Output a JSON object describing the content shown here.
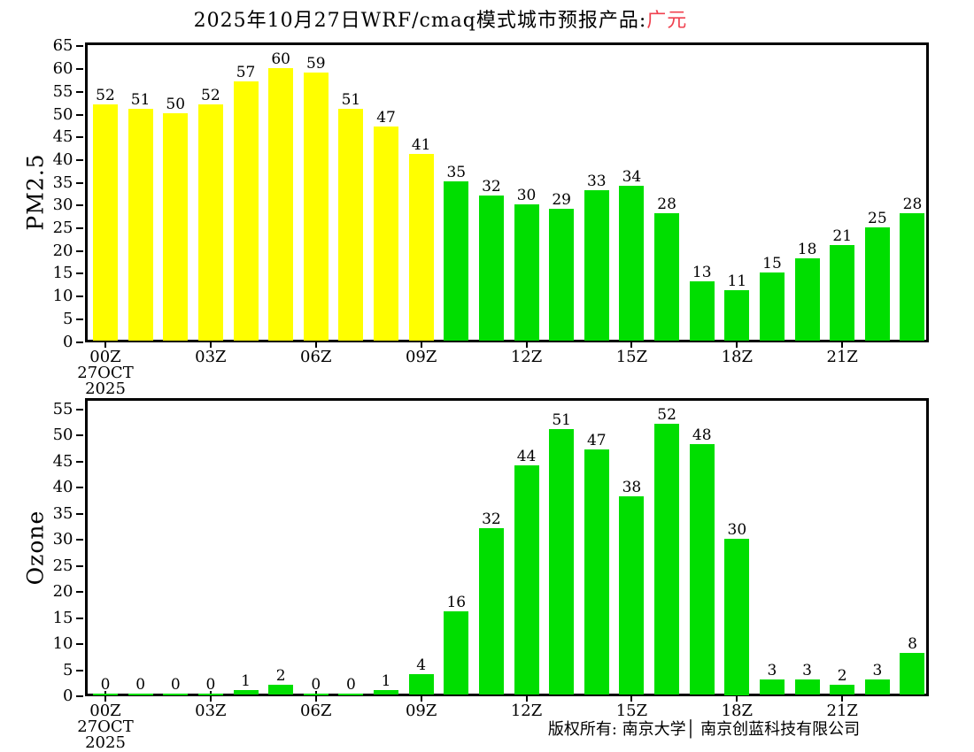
{
  "title": {
    "text": "2025年10月27日WRF/cmaq模式城市预报产品:",
    "highlight": "广元",
    "highlight_color": "#f0414f"
  },
  "footer": {
    "text": "版权所有: 南京大学│ 南京创蓝科技有限公司"
  },
  "colors": {
    "bar_yellow": "#ffff00",
    "bar_green": "#00de00",
    "axis": "#000000",
    "background": "#ffffff"
  },
  "x_axis": {
    "xtick_labels": [
      "00Z",
      "03Z",
      "06Z",
      "09Z",
      "12Z",
      "15Z",
      "18Z",
      "21Z"
    ],
    "xtick_every_hours": 3,
    "start_date_lines": [
      "27OCT",
      "2025"
    ]
  },
  "chart_data": [
    {
      "type": "bar",
      "name": "pm25",
      "ylabel": "PM2.5",
      "ylim": [
        0,
        65
      ],
      "ytick_step": 5,
      "grid": false,
      "legend": null,
      "hours": 24,
      "xtick_labels": [
        "00Z",
        "03Z",
        "06Z",
        "09Z",
        "12Z",
        "15Z",
        "18Z",
        "21Z"
      ],
      "start_date_lines": [
        "27OCT",
        "2025"
      ],
      "values": [
        52,
        51,
        50,
        52,
        57,
        60,
        59,
        51,
        47,
        41,
        35,
        32,
        30,
        29,
        33,
        34,
        28,
        13,
        11,
        15,
        18,
        21,
        25,
        28
      ],
      "bar_colors": [
        "#ffff00",
        "#ffff00",
        "#ffff00",
        "#ffff00",
        "#ffff00",
        "#ffff00",
        "#ffff00",
        "#ffff00",
        "#ffff00",
        "#ffff00",
        "#00de00",
        "#00de00",
        "#00de00",
        "#00de00",
        "#00de00",
        "#00de00",
        "#00de00",
        "#00de00",
        "#00de00",
        "#00de00",
        "#00de00",
        "#00de00",
        "#00de00",
        "#00de00"
      ]
    },
    {
      "type": "bar",
      "name": "ozone",
      "ylabel": "Ozone",
      "ylim": [
        0,
        55
      ],
      "ytick_step": 5,
      "grid": false,
      "legend": null,
      "hours": 24,
      "xtick_labels": [
        "00Z",
        "03Z",
        "06Z",
        "09Z",
        "12Z",
        "15Z",
        "18Z",
        "21Z"
      ],
      "start_date_lines": [
        "27OCT",
        "2025"
      ],
      "values": [
        0,
        0,
        0,
        0,
        1,
        2,
        0,
        0,
        1,
        4,
        16,
        32,
        44,
        51,
        47,
        38,
        52,
        48,
        30,
        3,
        3,
        2,
        3,
        8
      ],
      "bar_colors": [
        "#00de00",
        "#00de00",
        "#00de00",
        "#00de00",
        "#00de00",
        "#00de00",
        "#00de00",
        "#00de00",
        "#00de00",
        "#00de00",
        "#00de00",
        "#00de00",
        "#00de00",
        "#00de00",
        "#00de00",
        "#00de00",
        "#00de00",
        "#00de00",
        "#00de00",
        "#00de00",
        "#00de00",
        "#00de00",
        "#00de00",
        "#00de00"
      ]
    }
  ]
}
